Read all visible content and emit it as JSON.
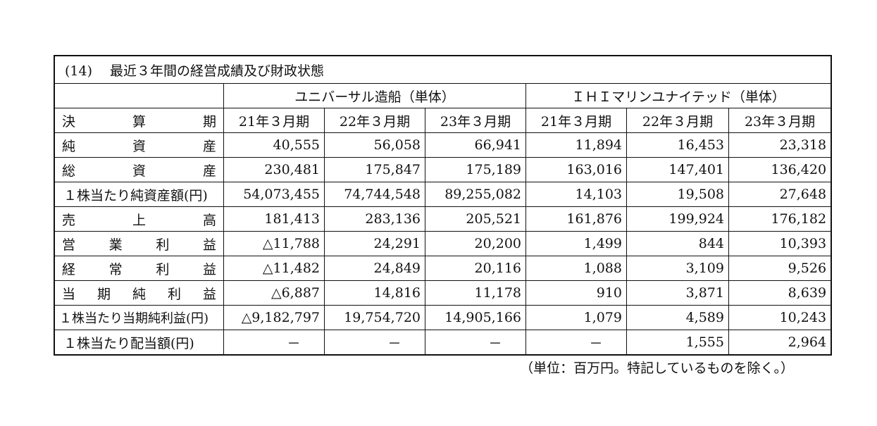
{
  "title": "(14)　 最近３年間の経営成績及び財政状態",
  "groups": [
    "ユニバーサル造船（単体）",
    "ＩＨＩマリンユナイテッド（単体）"
  ],
  "period_header": "決　　　算　　　期",
  "periods": [
    "21年３月期",
    "22年３月期",
    "23年３月期",
    "21年３月期",
    "22年３月期",
    "23年３月期"
  ],
  "rows": [
    {
      "label": "純　　資　　産",
      "values": [
        "40,555",
        "56,058",
        "66,941",
        "11,894",
        "16,453",
        "23,318"
      ]
    },
    {
      "label": "総　　資　　産",
      "values": [
        "230,481",
        "175,847",
        "175,189",
        "163,016",
        "147,401",
        "136,420"
      ]
    },
    {
      "label": "１株当たり純資産額(円)",
      "values": [
        "54,073,455",
        "74,744,548",
        "89,255,082",
        "14,103",
        "19,508",
        "27,648"
      ]
    },
    {
      "label": "売　　上　　高",
      "values": [
        "181,413",
        "283,136",
        "205,521",
        "161,876",
        "199,924",
        "176,182"
      ]
    },
    {
      "label": "営　業　利　益",
      "values": [
        "△11,788",
        "24,291",
        "20,200",
        "1,499",
        "844",
        "10,393"
      ]
    },
    {
      "label": "経　常　利　益",
      "values": [
        "△11,482",
        "24,849",
        "20,116",
        "1,088",
        "3,109",
        "9,526"
      ]
    },
    {
      "label": "当 期 純 利 益",
      "values": [
        "△6,887",
        "14,816",
        "11,178",
        "910",
        "3,871",
        "8,639"
      ]
    },
    {
      "label": "１株当たり当期純利益(円)",
      "values": [
        "△9,182,797",
        "19,754,720",
        "14,905,166",
        "1,079",
        "4,589",
        "10,243"
      ]
    },
    {
      "label": "１株当たり配当額(円)",
      "values": [
        "－",
        "－",
        "－",
        "－",
        "1,555",
        "2,964"
      ]
    }
  ],
  "unit_note": "（単位：百万円。特記しているものを除く。）"
}
